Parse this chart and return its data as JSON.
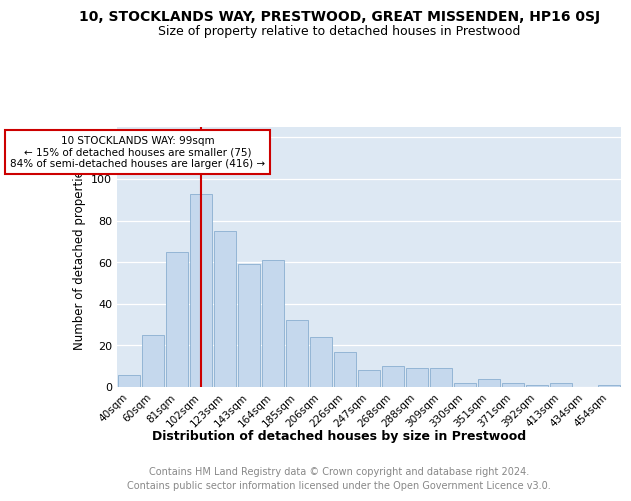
{
  "title": "10, STOCKLANDS WAY, PRESTWOOD, GREAT MISSENDEN, HP16 0SJ",
  "subtitle": "Size of property relative to detached houses in Prestwood",
  "xlabel": "Distribution of detached houses by size in Prestwood",
  "ylabel": "Number of detached properties",
  "categories": [
    "40sqm",
    "60sqm",
    "81sqm",
    "102sqm",
    "123sqm",
    "143sqm",
    "164sqm",
    "185sqm",
    "206sqm",
    "226sqm",
    "247sqm",
    "268sqm",
    "288sqm",
    "309sqm",
    "330sqm",
    "351sqm",
    "371sqm",
    "392sqm",
    "413sqm",
    "434sqm",
    "454sqm"
  ],
  "values": [
    6,
    25,
    65,
    93,
    75,
    59,
    61,
    32,
    24,
    17,
    8,
    10,
    9,
    9,
    2,
    4,
    2,
    1,
    2,
    0,
    1
  ],
  "bar_color": "#c5d8ed",
  "bar_edge_color": "#8aafd0",
  "vline_color": "#cc0000",
  "annotation_text": "10 STOCKLANDS WAY: 99sqm\n← 15% of detached houses are smaller (75)\n84% of semi-detached houses are larger (416) →",
  "annotation_box_color": "#ffffff",
  "annotation_box_edge": "#cc0000",
  "ylim": [
    0,
    125
  ],
  "yticks": [
    0,
    20,
    40,
    60,
    80,
    100,
    120
  ],
  "background_color": "#dde8f3",
  "footer_text": "Contains HM Land Registry data © Crown copyright and database right 2024.\nContains public sector information licensed under the Open Government Licence v3.0.",
  "title_fontsize": 10,
  "subtitle_fontsize": 9,
  "xlabel_fontsize": 9,
  "ylabel_fontsize": 8.5,
  "footer_fontsize": 7
}
